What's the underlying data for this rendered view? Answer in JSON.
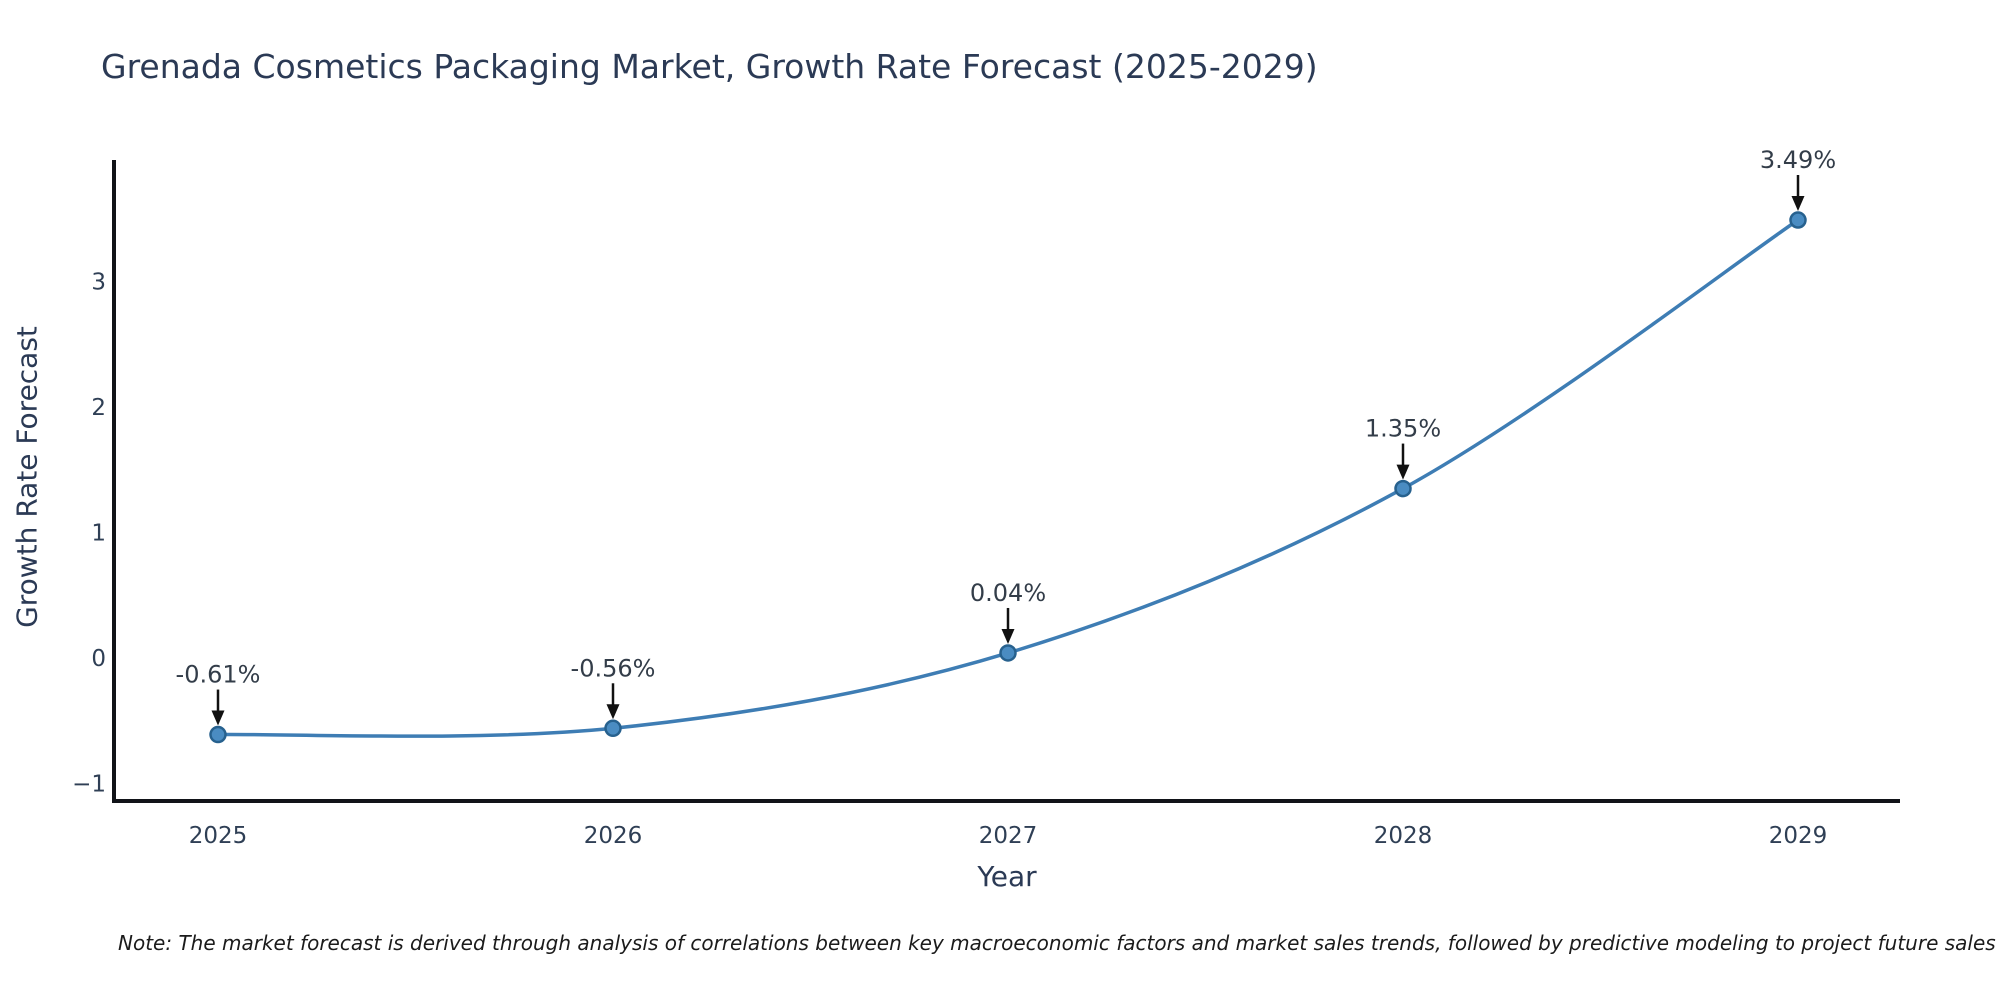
{
  "header": {
    "title": "Grenada Cosmetics Packaging Market, Growth Rate Forecast (2025-2029)"
  },
  "footnote": {
    "text": "Note: The market forecast is derived through analysis of correlations between key macroeconomic factors and market sales trends, followed by predictive modeling to project future sales"
  },
  "chart_data": {
    "type": "line",
    "title": "Grenada Cosmetics Packaging Market, Growth Rate Forecast (2025-2029)",
    "xlabel": "Year",
    "ylabel": "Growth Rate Forecast",
    "x": [
      2025,
      2026,
      2027,
      2028,
      2029
    ],
    "series": [
      {
        "name": "Growth Rate Forecast",
        "values": [
          -0.61,
          -0.56,
          0.04,
          1.35,
          3.49
        ]
      }
    ],
    "point_labels": [
      "-0.61%",
      "-0.56%",
      "0.04%",
      "1.35%",
      "3.49%"
    ],
    "yticks": [
      3,
      2,
      1,
      0,
      -1
    ],
    "xticks": [
      2025,
      2026,
      2027,
      2028,
      2029
    ],
    "xlim": [
      2024.74,
      2029.26
    ],
    "ylim": [
      -1.13,
      3.97
    ],
    "grid": false,
    "legend": "none",
    "annotation_style": "arrow-down-to-point",
    "colors": {
      "line": "#3e7db4",
      "marker_fill": "#4a8cc2",
      "marker_edge": "#27618e",
      "arrow": "#111111",
      "annotation_text": "#333d49",
      "tick_text": "#2f3f55",
      "axis_title_text": "#2b3a55",
      "title_text": "#2b3a55",
      "spine": "#111318",
      "background": "#ffffff"
    }
  }
}
